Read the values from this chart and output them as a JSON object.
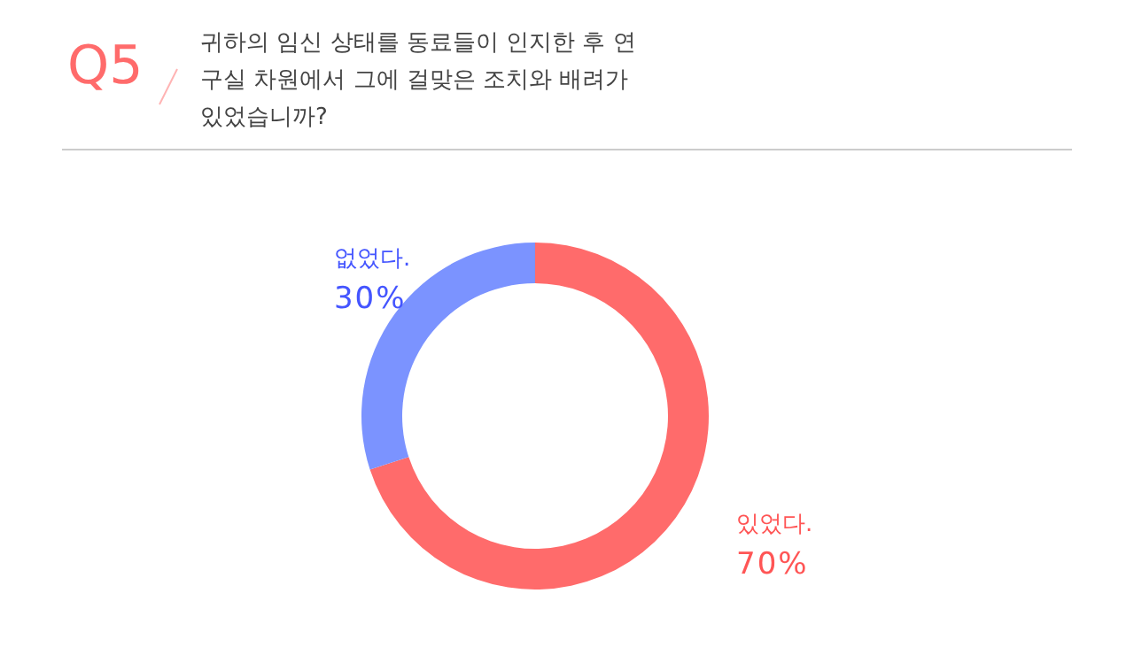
{
  "chart_data": {
    "type": "donut",
    "title": "Q5",
    "subtitle": "귀하의 임신 상태를 동료들이 인지한 후 연구실 차원에서 그에 걸맞은 조치와 배려가 있었습니까?",
    "categories": [
      "있었다.",
      "없었다."
    ],
    "values": [
      70,
      30
    ],
    "colors": [
      "#ff6b6b",
      "#7b93ff"
    ],
    "value_labels": [
      "70%",
      "30%"
    ]
  }
}
